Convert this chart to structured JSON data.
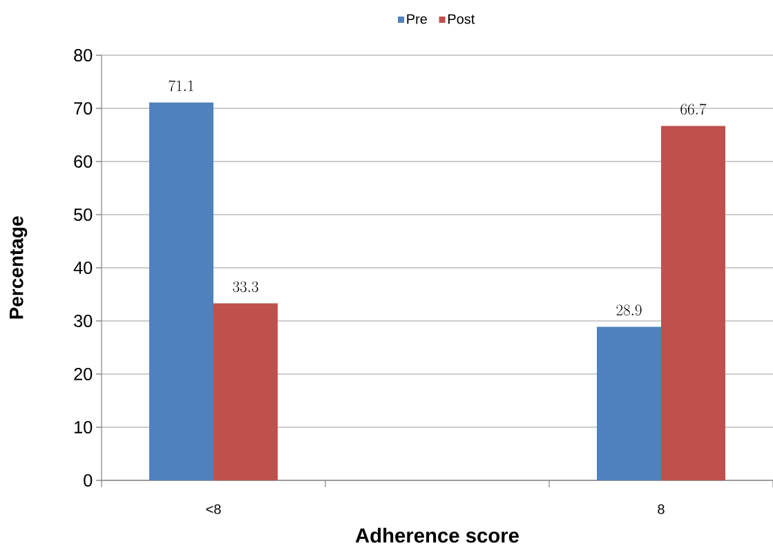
{
  "chart_data": {
    "type": "bar",
    "xlabel": "Adherence score",
    "ylabel": "Percentage",
    "categories": [
      "<8",
      null,
      "8"
    ],
    "series": [
      {
        "name": "Pre",
        "color": "#4f81bd",
        "values": [
          71.1,
          null,
          28.9
        ]
      },
      {
        "name": "Post",
        "color": "#c0504d",
        "values": [
          33.3,
          null,
          66.7
        ]
      }
    ],
    "ylim": [
      0,
      80
    ],
    "yticks": [
      0,
      10,
      20,
      30,
      40,
      50,
      60,
      70,
      80
    ],
    "grid": "y",
    "legend": "top",
    "data_labels": true
  }
}
